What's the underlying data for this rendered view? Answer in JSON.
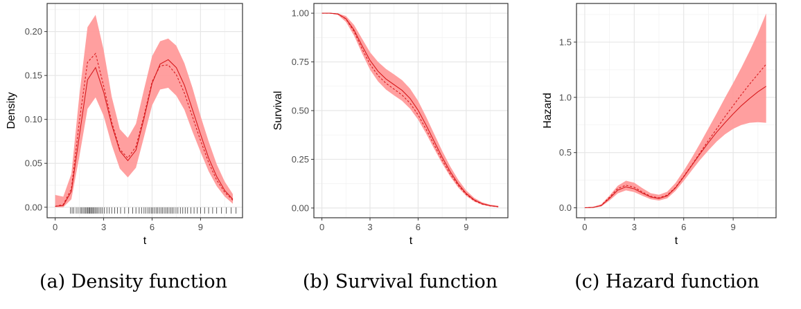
{
  "captions": {
    "a": "(a) Density function",
    "b": "(b) Survival function",
    "c": "(c) Hazard function"
  },
  "colors": {
    "band": "#FF9A9A",
    "line": "#D7191C",
    "grid_major": "#E6E6E6",
    "grid_minor": "#F2F2F2",
    "border": "#333333",
    "rug": "#333333"
  },
  "chart_data": [
    {
      "type": "line",
      "xlabel": "t",
      "ylabel": "Density",
      "xlim": [
        -0.5,
        11.6
      ],
      "ylim": [
        -0.012,
        0.232
      ],
      "x_ticks": [
        0,
        3,
        6,
        9
      ],
      "x_tick_labels": [
        "0",
        "3",
        "6",
        "9"
      ],
      "y_ticks": [
        0,
        0.05,
        0.1,
        0.15,
        0.2
      ],
      "y_tick_labels": [
        "0.00",
        "0.05",
        "0.10",
        "0.15",
        "0.20"
      ],
      "grid": true,
      "x": [
        0,
        0.5,
        1,
        1.5,
        2,
        2.5,
        3,
        3.5,
        4,
        4.5,
        5,
        5.5,
        6,
        6.5,
        7,
        7.5,
        8,
        8.5,
        9,
        9.5,
        10,
        10.5,
        11
      ],
      "series": [
        {
          "style": "solid",
          "values": [
            0.001,
            0.002,
            0.018,
            0.082,
            0.145,
            0.159,
            0.131,
            0.094,
            0.064,
            0.053,
            0.065,
            0.101,
            0.141,
            0.163,
            0.168,
            0.159,
            0.139,
            0.111,
            0.083,
            0.056,
            0.035,
            0.019,
            0.009
          ]
        },
        {
          "style": "dashed",
          "values": [
            0.001,
            0.003,
            0.021,
            0.098,
            0.165,
            0.175,
            0.138,
            0.097,
            0.066,
            0.056,
            0.069,
            0.104,
            0.143,
            0.161,
            0.162,
            0.151,
            0.13,
            0.103,
            0.076,
            0.051,
            0.031,
            0.017,
            0.008
          ]
        }
      ],
      "band": {
        "lower": [
          0.0,
          0.0,
          0.009,
          0.058,
          0.112,
          0.125,
          0.104,
          0.071,
          0.044,
          0.034,
          0.045,
          0.08,
          0.116,
          0.134,
          0.136,
          0.127,
          0.111,
          0.086,
          0.063,
          0.041,
          0.024,
          0.012,
          0.004
        ],
        "upper": [
          0.014,
          0.012,
          0.038,
          0.128,
          0.205,
          0.219,
          0.179,
          0.126,
          0.089,
          0.079,
          0.095,
          0.134,
          0.172,
          0.189,
          0.192,
          0.184,
          0.164,
          0.136,
          0.104,
          0.075,
          0.049,
          0.029,
          0.015
        ]
      },
      "rug": [
        0.95,
        1.05,
        1.15,
        1.3,
        1.42,
        1.55,
        1.63,
        1.72,
        1.8,
        1.88,
        1.95,
        2.02,
        2.08,
        2.14,
        2.2,
        2.27,
        2.33,
        2.4,
        2.47,
        2.55,
        2.63,
        2.72,
        2.82,
        2.92,
        3.05,
        3.2,
        3.35,
        3.5,
        3.68,
        3.85,
        4.05,
        4.3,
        4.55,
        4.8,
        5.0,
        5.2,
        5.35,
        5.5,
        5.62,
        5.75,
        5.85,
        5.95,
        6.05,
        6.15,
        6.25,
        6.35,
        6.45,
        6.55,
        6.65,
        6.75,
        6.85,
        6.95,
        7.05,
        7.15,
        7.25,
        7.35,
        7.48,
        7.6,
        7.75,
        7.9,
        8.05,
        8.2,
        8.4,
        8.6,
        8.8,
        9.0,
        9.25,
        9.5,
        9.75,
        10.0,
        10.3,
        10.6,
        10.9,
        11.2
      ]
    },
    {
      "type": "line",
      "xlabel": "t",
      "ylabel": "Survival",
      "xlim": [
        -0.5,
        11.6
      ],
      "ylim": [
        -0.05,
        1.05
      ],
      "x_ticks": [
        0,
        3,
        6,
        9
      ],
      "x_tick_labels": [
        "0",
        "3",
        "6",
        "9"
      ],
      "y_ticks": [
        0,
        0.25,
        0.5,
        0.75,
        1.0
      ],
      "y_tick_labels": [
        "0.00",
        "0.25",
        "0.50",
        "0.75",
        "1.00"
      ],
      "grid": true,
      "x": [
        0,
        0.5,
        1,
        1.5,
        2,
        2.5,
        3,
        3.5,
        4,
        4.5,
        5,
        5.5,
        6,
        6.5,
        7,
        7.5,
        8,
        8.5,
        9,
        9.5,
        10,
        10.5,
        11
      ],
      "series": [
        {
          "style": "solid",
          "values": [
            1.0,
            1.0,
            0.996,
            0.972,
            0.914,
            0.834,
            0.758,
            0.702,
            0.662,
            0.633,
            0.604,
            0.562,
            0.502,
            0.425,
            0.342,
            0.261,
            0.187,
            0.124,
            0.075,
            0.042,
            0.022,
            0.012,
            0.007
          ]
        },
        {
          "style": "dashed",
          "values": [
            1.0,
            1.0,
            0.996,
            0.97,
            0.906,
            0.818,
            0.738,
            0.68,
            0.64,
            0.61,
            0.58,
            0.538,
            0.478,
            0.404,
            0.324,
            0.246,
            0.175,
            0.116,
            0.07,
            0.038,
            0.02,
            0.011,
            0.006
          ]
        }
      ],
      "band": {
        "lower": [
          1.0,
          0.999,
          0.991,
          0.955,
          0.885,
          0.795,
          0.71,
          0.65,
          0.608,
          0.578,
          0.55,
          0.51,
          0.454,
          0.382,
          0.304,
          0.229,
          0.162,
          0.105,
          0.062,
          0.033,
          0.016,
          0.008,
          0.004
        ],
        "upper": [
          1.0,
          1.0,
          0.999,
          0.985,
          0.94,
          0.87,
          0.8,
          0.75,
          0.714,
          0.686,
          0.656,
          0.613,
          0.55,
          0.468,
          0.38,
          0.294,
          0.214,
          0.145,
          0.09,
          0.052,
          0.029,
          0.017,
          0.011
        ]
      }
    },
    {
      "type": "line",
      "xlabel": "t",
      "ylabel": "Hazard",
      "xlim": [
        -0.5,
        11.6
      ],
      "ylim": [
        -0.09,
        1.85
      ],
      "x_ticks": [
        0,
        3,
        6,
        9
      ],
      "x_tick_labels": [
        "0",
        "3",
        "6",
        "9"
      ],
      "y_ticks": [
        0,
        0.5,
        1.0,
        1.5
      ],
      "y_tick_labels": [
        "0.0",
        "0.5",
        "1.0",
        "1.5"
      ],
      "grid": true,
      "x": [
        0,
        0.5,
        1,
        1.5,
        2,
        2.5,
        3,
        3.5,
        4,
        4.5,
        5,
        5.5,
        6,
        6.5,
        7,
        7.5,
        8,
        8.5,
        9,
        9.5,
        10,
        10.5,
        11
      ],
      "series": [
        {
          "style": "solid",
          "values": [
            0.001,
            0.003,
            0.02,
            0.085,
            0.16,
            0.19,
            0.172,
            0.133,
            0.098,
            0.085,
            0.108,
            0.18,
            0.28,
            0.385,
            0.49,
            0.59,
            0.685,
            0.77,
            0.85,
            0.925,
            0.99,
            1.05,
            1.1
          ]
        },
        {
          "style": "dashed",
          "values": [
            0.001,
            0.003,
            0.022,
            0.095,
            0.175,
            0.205,
            0.186,
            0.142,
            0.104,
            0.09,
            0.115,
            0.185,
            0.285,
            0.39,
            0.5,
            0.61,
            0.715,
            0.825,
            0.925,
            1.025,
            1.12,
            1.21,
            1.3
          ]
        }
      ],
      "band": {
        "lower": [
          0.0,
          0.001,
          0.012,
          0.066,
          0.13,
          0.158,
          0.142,
          0.109,
          0.077,
          0.066,
          0.085,
          0.153,
          0.243,
          0.34,
          0.435,
          0.52,
          0.6,
          0.665,
          0.715,
          0.75,
          0.77,
          0.775,
          0.77
        ],
        "upper": [
          0.004,
          0.008,
          0.032,
          0.11,
          0.2,
          0.245,
          0.228,
          0.178,
          0.132,
          0.118,
          0.145,
          0.225,
          0.335,
          0.455,
          0.585,
          0.72,
          0.855,
          0.995,
          1.13,
          1.27,
          1.42,
          1.58,
          1.76
        ]
      }
    }
  ]
}
